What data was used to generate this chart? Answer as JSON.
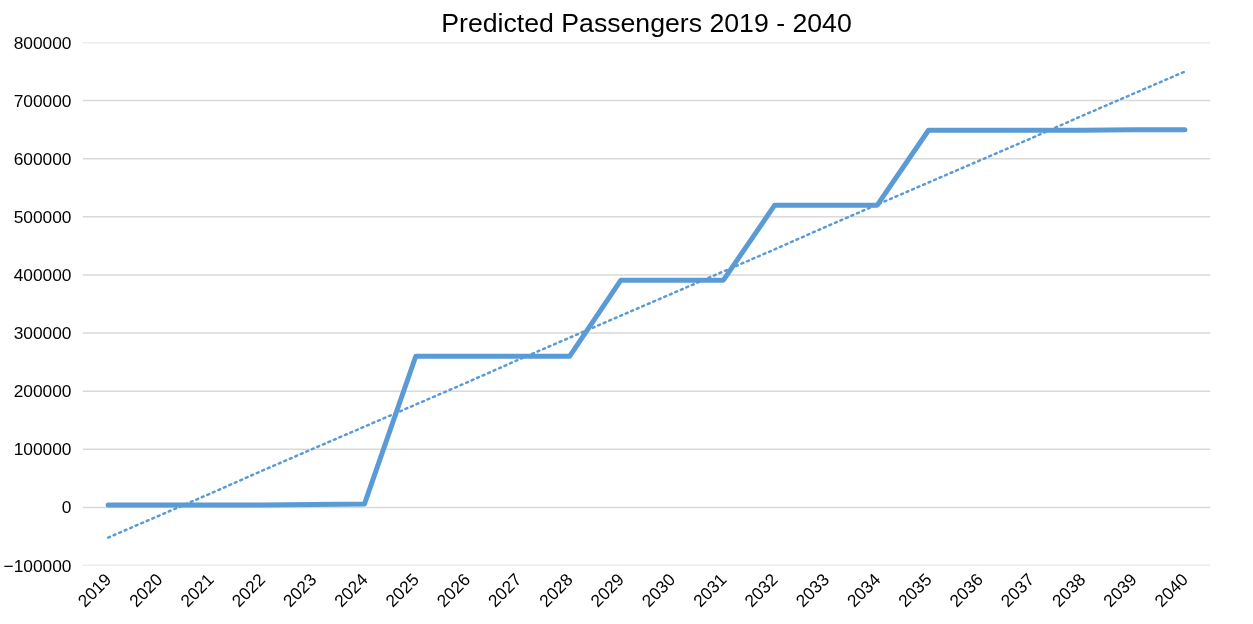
{
  "chart_data": {
    "type": "line",
    "title": "Predicted Passengers 2019 - 2040",
    "categories": [
      "2019",
      "2020",
      "2021",
      "2022",
      "2023",
      "2024",
      "2025",
      "2026",
      "2027",
      "2028",
      "2029",
      "2030",
      "2031",
      "2032",
      "2033",
      "2034",
      "2035",
      "2036",
      "2037",
      "2038",
      "2039",
      "2040"
    ],
    "series": [
      {
        "color": "#5b9bd5",
        "values": [
          4000,
          4000,
          4000,
          4000,
          5000,
          6000,
          260000,
          260000,
          260000,
          260000,
          391000,
          391000,
          391000,
          520000,
          520000,
          520000,
          649000,
          649000,
          649000,
          649000,
          650000,
          650000
        ]
      },
      {
        "type": "line",
        "color": "#5b9bd5",
        "line_style": "dotted",
        "values": [
          -52000,
          -14000,
          24000,
          63000,
          101000,
          139000,
          177000,
          215000,
          254000,
          292000,
          330000,
          368000,
          406000,
          444000,
          483000,
          521000,
          559000,
          597000,
          635000,
          674000,
          712000,
          750000
        ]
      }
    ],
    "ylim": [
      -100000,
      800000
    ],
    "yticks": [
      -100000,
      0,
      100000,
      200000,
      300000,
      400000,
      500000,
      600000,
      700000,
      800000
    ],
    "grid": "y",
    "marker": "none",
    "line_style": "solid"
  }
}
